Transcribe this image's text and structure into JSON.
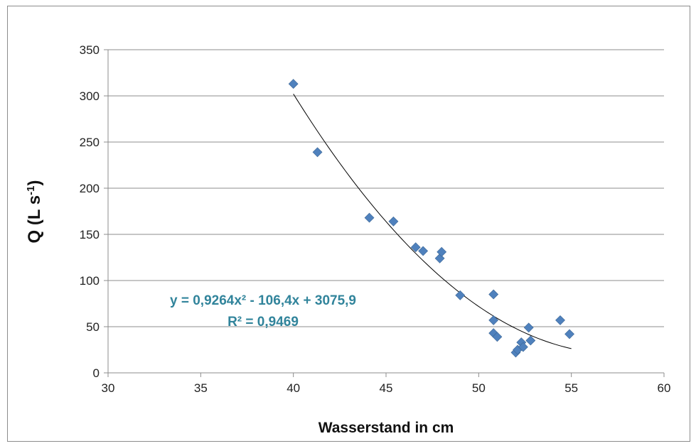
{
  "chart_data": {
    "type": "scatter",
    "title": "",
    "xlabel": "Wasserstand in cm",
    "ylabel_main": "Q (L s",
    "ylabel_sup": "-1",
    "ylabel_close": ")",
    "xlim": [
      30,
      60
    ],
    "ylim": [
      0,
      350
    ],
    "xticks": [
      30,
      35,
      40,
      45,
      50,
      55,
      60
    ],
    "yticks": [
      0,
      50,
      100,
      150,
      200,
      250,
      300,
      350
    ],
    "grid": "horizontal",
    "legend": "none",
    "series": [
      {
        "marker": "diamond",
        "color": "#4f81bd",
        "points": [
          [
            40.0,
            313
          ],
          [
            41.3,
            239
          ],
          [
            44.1,
            168
          ],
          [
            45.4,
            164
          ],
          [
            46.6,
            136
          ],
          [
            47.0,
            132
          ],
          [
            47.9,
            124
          ],
          [
            48.0,
            131
          ],
          [
            49.0,
            84
          ],
          [
            50.8,
            85
          ],
          [
            50.8,
            57
          ],
          [
            50.8,
            43
          ],
          [
            51.0,
            39
          ],
          [
            52.0,
            22
          ],
          [
            52.1,
            25
          ],
          [
            52.3,
            33
          ],
          [
            52.4,
            28
          ],
          [
            52.7,
            49
          ],
          [
            52.8,
            35
          ],
          [
            54.4,
            57
          ],
          [
            54.9,
            42
          ]
        ]
      }
    ],
    "trendline": {
      "type": "polynomial",
      "coefficients": [
        0.9264,
        -106.4,
        3075.9
      ],
      "x_range": [
        40.0,
        55.0
      ],
      "color": "#000000",
      "equation_text": "y = 0,9264x² - 106,4x + 3075,9",
      "r2_text": "R² = 0,9469",
      "label_color": "#31849b"
    }
  }
}
